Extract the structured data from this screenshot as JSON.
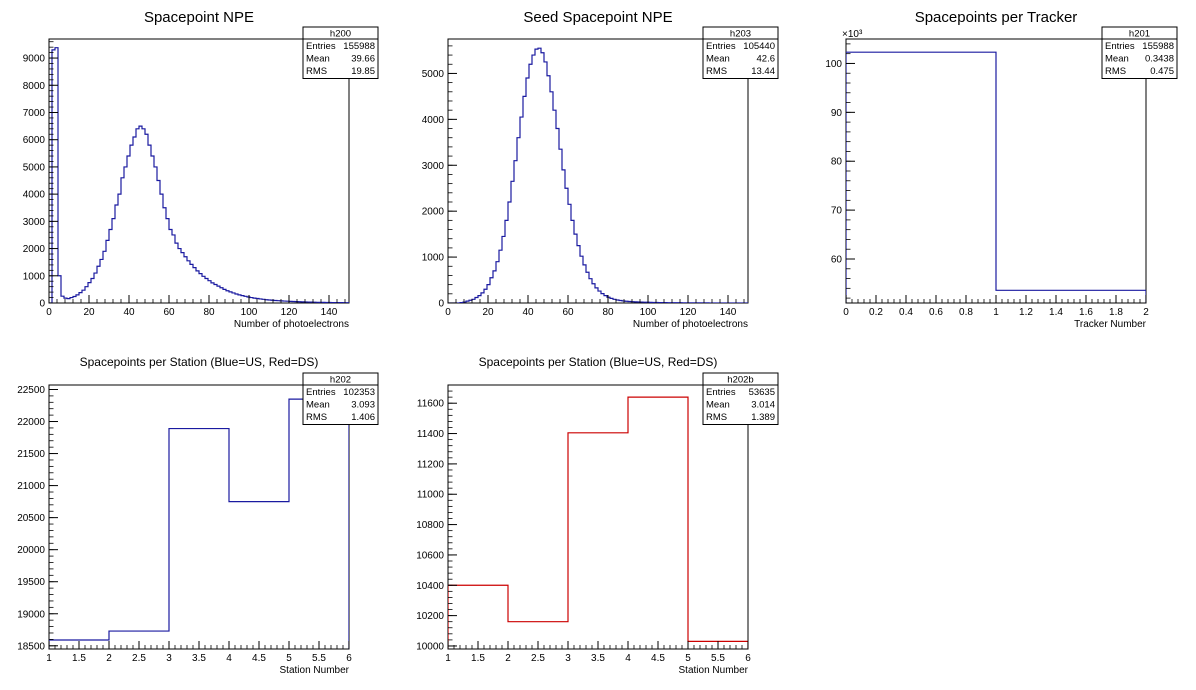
{
  "chart_data": [
    {
      "id": "npe",
      "type": "bar",
      "style": "step-histogram",
      "title": "Spacepoint NPE",
      "xlabel": "Number of photoelectrons",
      "ylabel": "",
      "color": "#1a1aa0",
      "xlim": [
        0,
        150
      ],
      "ylim": [
        0,
        9700
      ],
      "bin_edges_from": 0,
      "bin_width": 1.5,
      "values": [
        0,
        9300,
        9380,
        1000,
        250,
        180,
        160,
        200,
        240,
        300,
        380,
        470,
        600,
        750,
        900,
        1100,
        1350,
        1600,
        1900,
        2300,
        2700,
        3100,
        3600,
        4000,
        4600,
        5000,
        5400,
        5800,
        6100,
        6400,
        6500,
        6400,
        6200,
        5800,
        5400,
        5000,
        4500,
        4000,
        3500,
        3100,
        2700,
        2500,
        2200,
        2000,
        1850,
        1700,
        1550,
        1420,
        1300,
        1180,
        1080,
        980,
        900,
        820,
        740,
        680,
        620,
        560,
        500,
        450,
        410,
        370,
        330,
        300,
        270,
        245,
        220,
        200,
        180,
        165,
        150,
        135,
        120,
        110,
        100,
        92,
        85,
        78,
        72,
        66,
        60,
        55,
        50,
        46,
        42,
        38,
        35,
        32,
        29,
        26,
        24,
        22,
        20,
        18,
        16,
        15,
        14,
        13,
        12,
        11
      ],
      "xticks": [
        0,
        20,
        40,
        60,
        80,
        100,
        120,
        140
      ],
      "yticks": [
        0,
        1000,
        2000,
        3000,
        4000,
        5000,
        6000,
        7000,
        8000,
        9000
      ],
      "exponent": "",
      "stats": {
        "name": "h200",
        "rows": [
          [
            "Entries",
            "155988"
          ],
          [
            "Mean",
            "39.66"
          ],
          [
            "RMS",
            "19.85"
          ]
        ]
      }
    },
    {
      "id": "seednpe",
      "type": "bar",
      "style": "step-histogram",
      "title": "Seed Spacepoint NPE",
      "xlabel": "Number of photoelectrons",
      "ylabel": "",
      "color": "#1a1aa0",
      "xlim": [
        0,
        150
      ],
      "ylim": [
        0,
        5750
      ],
      "bin_edges_from": 0,
      "bin_width": 1.5,
      "values": [
        0,
        0,
        0,
        0,
        10,
        20,
        40,
        60,
        80,
        120,
        160,
        220,
        300,
        400,
        550,
        700,
        900,
        1150,
        1450,
        1800,
        2200,
        2650,
        3100,
        3600,
        4050,
        4500,
        4900,
        5200,
        5400,
        5530,
        5550,
        5450,
        5250,
        4950,
        4600,
        4200,
        3800,
        3350,
        2900,
        2500,
        2150,
        1800,
        1500,
        1250,
        1020,
        830,
        670,
        530,
        420,
        330,
        260,
        205,
        160,
        125,
        100,
        80,
        65,
        55,
        45,
        38,
        32,
        28,
        25,
        22,
        20,
        18,
        16,
        14,
        12,
        11,
        10,
        9,
        8,
        7,
        6,
        6,
        5,
        5,
        4,
        4,
        3,
        3,
        3,
        2,
        2,
        2,
        2,
        1,
        1,
        1,
        1,
        1,
        1,
        1,
        1,
        0,
        0,
        0,
        0,
        0
      ],
      "xticks": [
        0,
        20,
        40,
        60,
        80,
        100,
        120,
        140
      ],
      "yticks": [
        0,
        1000,
        2000,
        3000,
        4000,
        5000
      ],
      "exponent": "",
      "stats": {
        "name": "h203",
        "rows": [
          [
            "Entries",
            "105440"
          ],
          [
            "Mean",
            "42.6"
          ],
          [
            "RMS",
            "13.44"
          ]
        ]
      }
    },
    {
      "id": "tracker",
      "type": "bar",
      "style": "step-histogram",
      "title": "Spacepoints per Tracker",
      "xlabel": "Tracker Number",
      "ylabel": "",
      "color": "#1a1aa0",
      "xlim": [
        0,
        2
      ],
      "ylim": [
        51,
        105
      ],
      "bin_edges_from": 0,
      "bin_width": 1,
      "values": [
        102.3,
        53.6
      ],
      "xticks": [
        0,
        0.2,
        0.4,
        0.6,
        0.8,
        1,
        1.2,
        1.4,
        1.6,
        1.8,
        2
      ],
      "xtick_labels": [
        "0",
        "0.2",
        "0.4",
        "0.6",
        "0.8",
        "1",
        "1.2",
        "1.4",
        "1.6",
        "1.8",
        "2"
      ],
      "yticks": [
        60,
        70,
        80,
        90,
        100
      ],
      "exponent": "×10³",
      "stats": {
        "name": "h201",
        "rows": [
          [
            "Entries",
            "155988"
          ],
          [
            "Mean",
            "0.3438"
          ],
          [
            "RMS",
            "0.475"
          ]
        ]
      }
    },
    {
      "id": "stationUS",
      "type": "bar",
      "style": "step-histogram",
      "title": "Spacepoints per Station (Blue=US, Red=DS)",
      "xlabel": "Station Number",
      "ylabel": "",
      "color": "#1a1aa0",
      "xlim": [
        1,
        6
      ],
      "ylim": [
        18450,
        22570
      ],
      "bin_edges_from": 1,
      "bin_width": 1,
      "values": [
        18590,
        18730,
        21890,
        20750,
        22350
      ],
      "xticks": [
        1,
        1.5,
        2,
        2.5,
        3,
        3.5,
        4,
        4.5,
        5,
        5.5,
        6
      ],
      "xtick_labels": [
        "1",
        "1.5",
        "2",
        "2.5",
        "3",
        "3.5",
        "4",
        "4.5",
        "5",
        "5.5",
        "6"
      ],
      "yticks": [
        18500,
        19000,
        19500,
        20000,
        20500,
        21000,
        21500,
        22000,
        22500
      ],
      "exponent": "",
      "stats": {
        "name": "h202",
        "rows": [
          [
            "Entries",
            "102353"
          ],
          [
            "Mean",
            "3.093"
          ],
          [
            "RMS",
            "1.406"
          ]
        ]
      }
    },
    {
      "id": "stationDS",
      "type": "bar",
      "style": "step-histogram",
      "title": "Spacepoints per Station (Blue=US, Red=DS)",
      "xlabel": "Station Number",
      "ylabel": "",
      "color": "#cc0000",
      "xlim": [
        1,
        6
      ],
      "ylim": [
        9980,
        11720
      ],
      "bin_edges_from": 1,
      "bin_width": 1,
      "values": [
        10400,
        10160,
        11405,
        11640,
        10030
      ],
      "xticks": [
        1,
        1.5,
        2,
        2.5,
        3,
        3.5,
        4,
        4.5,
        5,
        5.5,
        6
      ],
      "xtick_labels": [
        "1",
        "1.5",
        "2",
        "2.5",
        "3",
        "3.5",
        "4",
        "4.5",
        "5",
        "5.5",
        "6"
      ],
      "yticks": [
        10000,
        10200,
        10400,
        10600,
        10800,
        11000,
        11200,
        11400,
        11600
      ],
      "exponent": "",
      "stats": {
        "name": "h202b",
        "rows": [
          [
            "Entries",
            "53635"
          ],
          [
            "Mean",
            "3.014"
          ],
          [
            "RMS",
            "1.389"
          ]
        ]
      }
    }
  ]
}
